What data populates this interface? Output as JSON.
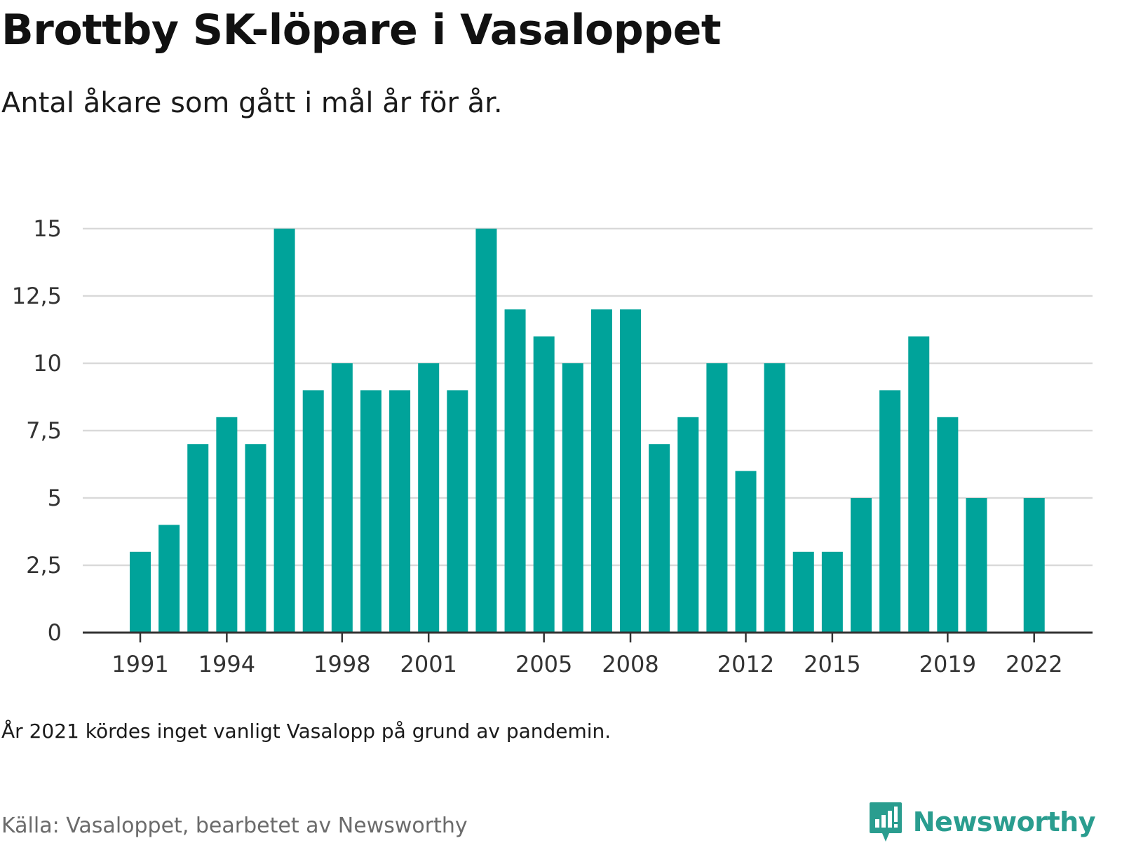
{
  "title": "Brottby SK-löpare i Vasaloppet",
  "subtitle": "Antal åkare som gått i mål år för år.",
  "note": "År 2021 kördes inget vanligt Vasalopp på grund av pandemin.",
  "source": "Källa: Vasaloppet, bearbetet av Newsworthy",
  "brand": {
    "name": "Newsworthy",
    "icon": "newsworthy-logo-icon",
    "color": "#2a9d8f"
  },
  "colors": {
    "bar": "#00a39a",
    "grid": "#d9d9d9",
    "axis": "#333333"
  },
  "chart_data": {
    "type": "bar",
    "categories": [
      "1991",
      "1992",
      "1993",
      "1994",
      "1995",
      "1996",
      "1997",
      "1998",
      "1999",
      "2000",
      "2001",
      "2002",
      "2003",
      "2004",
      "2005",
      "2006",
      "2007",
      "2008",
      "2009",
      "2010",
      "2011",
      "2012",
      "2013",
      "2014",
      "2015",
      "2016",
      "2017",
      "2018",
      "2019",
      "2020",
      "2021",
      "2022"
    ],
    "values": [
      3,
      4,
      7,
      8,
      7,
      15,
      9,
      10,
      9,
      9,
      10,
      9,
      15,
      12,
      11,
      10,
      12,
      12,
      7,
      8,
      10,
      6,
      10,
      3,
      3,
      5,
      9,
      11,
      8,
      5,
      null,
      5
    ],
    "x_tick_labels": [
      "1991",
      "1994",
      "1998",
      "2001",
      "2005",
      "2008",
      "2012",
      "2015",
      "2019",
      "2022"
    ],
    "y_ticks": [
      0,
      2.5,
      5,
      7.5,
      10,
      12.5,
      15
    ],
    "y_tick_labels": [
      "0",
      "2,5",
      "5",
      "7,5",
      "10",
      "12,5",
      "15"
    ],
    "ylim": [
      0,
      15
    ],
    "grid": true,
    "legend": false
  }
}
